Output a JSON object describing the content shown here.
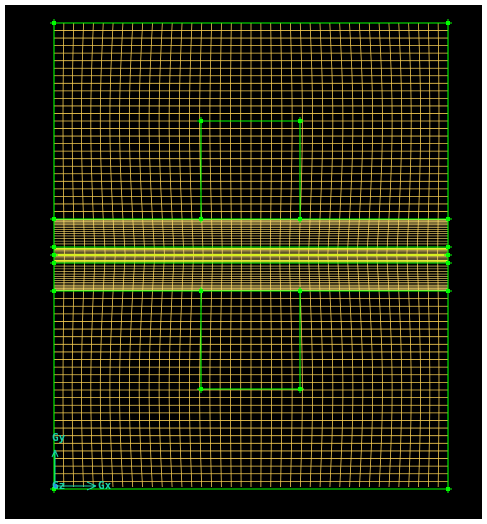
{
  "viewport": {
    "background_color": "#000000"
  },
  "mesh": {
    "line_color": "#f0c850",
    "dense_band_color": "#ffe070",
    "center_line_color": "#d8f020",
    "block_edge_color": "#00ff00",
    "vertex_color": "#00ff00"
  },
  "axis_triad": {
    "color": "#19d4a8",
    "origin_color": "#3070ff",
    "y_label": "Gy",
    "z_label": "Gz",
    "x_label": "Gx"
  }
}
